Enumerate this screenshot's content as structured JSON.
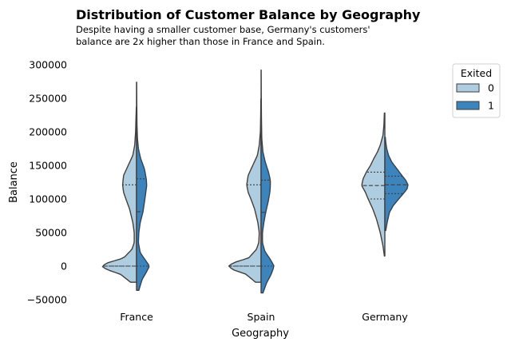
{
  "chart_data": {
    "type": "violin",
    "title": "Distribution of Customer Balance by Geography",
    "subtitle_lines": [
      "Despite having a smaller customer base, Germany's customers'",
      "balance are 2x higher than those in France and Spain."
    ],
    "xlabel": "Geography",
    "ylabel": "Balance",
    "categories": [
      "France",
      "Spain",
      "Germany"
    ],
    "ylim": [
      -50000,
      300000
    ],
    "yticks": [
      -50000,
      0,
      50000,
      100000,
      150000,
      200000,
      250000,
      300000
    ],
    "ytick_labels": [
      "−50000",
      "0",
      "50000",
      "100000",
      "150000",
      "200000",
      "250000",
      "300000"
    ],
    "grid": false,
    "split": true,
    "inner": "quartile",
    "legend": {
      "title": "Exited",
      "position": "top-right",
      "entries": [
        {
          "label": "0",
          "color": "#aecde1"
        },
        {
          "label": "1",
          "color": "#3d84bc"
        }
      ]
    },
    "series": [
      {
        "name": "0",
        "color": "#aecde1",
        "side": "left",
        "violins": [
          {
            "category": "France",
            "range": [
              -24000,
              237000
            ],
            "quartiles": [
              0,
              0,
              121000
            ],
            "profile": [
              [
                -24000,
                0.13
              ],
              [
                -12000,
                0.35
              ],
              [
                -5000,
                0.65
              ],
              [
                0,
                0.75
              ],
              [
                5000,
                0.62
              ],
              [
                12000,
                0.28
              ],
              [
                25000,
                0.1
              ],
              [
                35000,
                0.05
              ],
              [
                50000,
                0.05
              ],
              [
                65000,
                0.08
              ],
              [
                85000,
                0.15
              ],
              [
                100000,
                0.23
              ],
              [
                110000,
                0.28
              ],
              [
                121000,
                0.3
              ],
              [
                135000,
                0.28
              ],
              [
                150000,
                0.18
              ],
              [
                165000,
                0.08
              ],
              [
                180000,
                0.04
              ],
              [
                200000,
                0.02
              ],
              [
                220000,
                0.012
              ],
              [
                237000,
                0.004
              ]
            ]
          },
          {
            "category": "Spain",
            "range": [
              -24000,
              249000
            ],
            "quartiles": [
              0,
              0,
              121000
            ],
            "profile": [
              [
                -24000,
                0.12
              ],
              [
                -12000,
                0.33
              ],
              [
                -5000,
                0.62
              ],
              [
                0,
                0.7
              ],
              [
                5000,
                0.6
              ],
              [
                12000,
                0.27
              ],
              [
                25000,
                0.1
              ],
              [
                35000,
                0.05
              ],
              [
                50000,
                0.04
              ],
              [
                65000,
                0.07
              ],
              [
                85000,
                0.14
              ],
              [
                100000,
                0.22
              ],
              [
                110000,
                0.28
              ],
              [
                121000,
                0.31
              ],
              [
                135000,
                0.28
              ],
              [
                150000,
                0.18
              ],
              [
                165000,
                0.08
              ],
              [
                180000,
                0.04
              ],
              [
                200000,
                0.015
              ],
              [
                225000,
                0.008
              ],
              [
                249000,
                0.004
              ]
            ]
          },
          {
            "category": "Germany",
            "range": [
              15000,
              228000
            ],
            "quartiles": [
              100000,
              120000,
              140000
            ],
            "profile": [
              [
                15000,
                0.01
              ],
              [
                30000,
                0.04
              ],
              [
                50000,
                0.1
              ],
              [
                70000,
                0.18
              ],
              [
                85000,
                0.26
              ],
              [
                100000,
                0.36
              ],
              [
                110000,
                0.42
              ],
              [
                120000,
                0.5
              ],
              [
                130000,
                0.47
              ],
              [
                140000,
                0.4
              ],
              [
                150000,
                0.31
              ],
              [
                160000,
                0.24
              ],
              [
                170000,
                0.16
              ],
              [
                180000,
                0.1
              ],
              [
                195000,
                0.04
              ],
              [
                210000,
                0.02
              ],
              [
                228000,
                0.01
              ]
            ]
          }
        ]
      },
      {
        "name": "1",
        "color": "#3d84bc",
        "side": "right",
        "violins": [
          {
            "category": "France",
            "range": [
              -36000,
              274000
            ],
            "quartiles": [
              0,
              81000,
              130000
            ],
            "profile": [
              [
                -36000,
                0.05
              ],
              [
                -20000,
                0.12
              ],
              [
                -8000,
                0.22
              ],
              [
                0,
                0.28
              ],
              [
                8000,
                0.2
              ],
              [
                20000,
                0.08
              ],
              [
                35000,
                0.04
              ],
              [
                50000,
                0.05
              ],
              [
                65000,
                0.08
              ],
              [
                81000,
                0.14
              ],
              [
                95000,
                0.17
              ],
              [
                110000,
                0.2
              ],
              [
                120000,
                0.22
              ],
              [
                130000,
                0.21
              ],
              [
                145000,
                0.17
              ],
              [
                160000,
                0.09
              ],
              [
                175000,
                0.04
              ],
              [
                190000,
                0.02
              ],
              [
                210000,
                0.01
              ],
              [
                240000,
                0.006
              ],
              [
                274000,
                0.003
              ]
            ]
          },
          {
            "category": "Spain",
            "range": [
              -40000,
              292000
            ],
            "quartiles": [
              0,
              80000,
              128000
            ],
            "profile": [
              [
                -40000,
                0.04
              ],
              [
                -25000,
                0.12
              ],
              [
                -12000,
                0.22
              ],
              [
                0,
                0.28
              ],
              [
                10000,
                0.2
              ],
              [
                22000,
                0.08
              ],
              [
                35000,
                0.03
              ],
              [
                50000,
                0.03
              ],
              [
                65000,
                0.06
              ],
              [
                80000,
                0.1
              ],
              [
                95000,
                0.15
              ],
              [
                110000,
                0.19
              ],
              [
                120000,
                0.2
              ],
              [
                128000,
                0.2
              ],
              [
                140000,
                0.16
              ],
              [
                155000,
                0.09
              ],
              [
                170000,
                0.04
              ],
              [
                190000,
                0.015
              ],
              [
                220000,
                0.008
              ],
              [
                255000,
                0.004
              ],
              [
                292000,
                0.002
              ]
            ]
          },
          {
            "category": "Germany",
            "range": [
              53000,
              192000
            ],
            "quartiles": [
              108000,
              121000,
              134000
            ],
            "profile": [
              [
                53000,
                0.02
              ],
              [
                65000,
                0.05
              ],
              [
                80000,
                0.1
              ],
              [
                90000,
                0.18
              ],
              [
                100000,
                0.3
              ],
              [
                108000,
                0.4
              ],
              [
                115000,
                0.48
              ],
              [
                121000,
                0.5
              ],
              [
                128000,
                0.45
              ],
              [
                134000,
                0.38
              ],
              [
                145000,
                0.26
              ],
              [
                155000,
                0.15
              ],
              [
                165000,
                0.08
              ],
              [
                175000,
                0.04
              ],
              [
                185000,
                0.02
              ],
              [
                192000,
                0.01
              ]
            ]
          }
        ]
      }
    ]
  }
}
